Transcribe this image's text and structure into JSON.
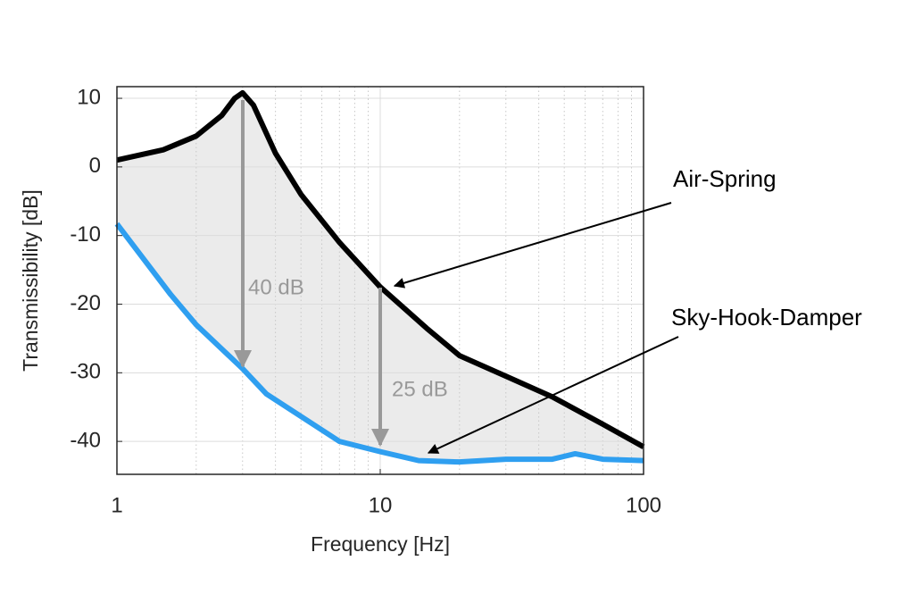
{
  "chart_data": {
    "type": "line",
    "x_label": "Frequency [Hz]",
    "y_label": "Transmissibility [dB]",
    "xscale": "log",
    "xlim": [
      1,
      100
    ],
    "xticks": [
      1,
      10,
      100
    ],
    "ylim": [
      -44.8,
      11.7
    ],
    "yticks": [
      10,
      0,
      -10,
      -20,
      -30,
      -40
    ],
    "grid": true,
    "minor_grid": true,
    "series": [
      {
        "name": "Air-Spring",
        "color": "#000000",
        "x": [
          1,
          1.5,
          2,
          2.5,
          2.8,
          3,
          3.3,
          4,
          5,
          7,
          10,
          15,
          20,
          30,
          45,
          70,
          100
        ],
        "values": [
          1,
          2.5,
          4.5,
          7.5,
          10,
          10.8,
          9,
          2,
          -4,
          -11,
          -17.5,
          -23.5,
          -27.5,
          -30.5,
          -33.5,
          -37.5,
          -40.8
        ]
      },
      {
        "name": "Sky-Hook-Damper",
        "color": "#2f9ff0",
        "x": [
          1,
          1.6,
          2,
          3,
          3.7,
          7,
          10,
          14,
          20,
          30,
          45,
          55,
          70,
          100
        ],
        "values": [
          -8.3,
          -18.6,
          -23,
          -29.4,
          -33.1,
          -40,
          -41.5,
          -42.8,
          -43,
          -42.6,
          -42.6,
          -41.8,
          -42.6,
          -42.8
        ]
      }
    ],
    "annotations": [
      "40 dB",
      "25 dB"
    ]
  }
}
